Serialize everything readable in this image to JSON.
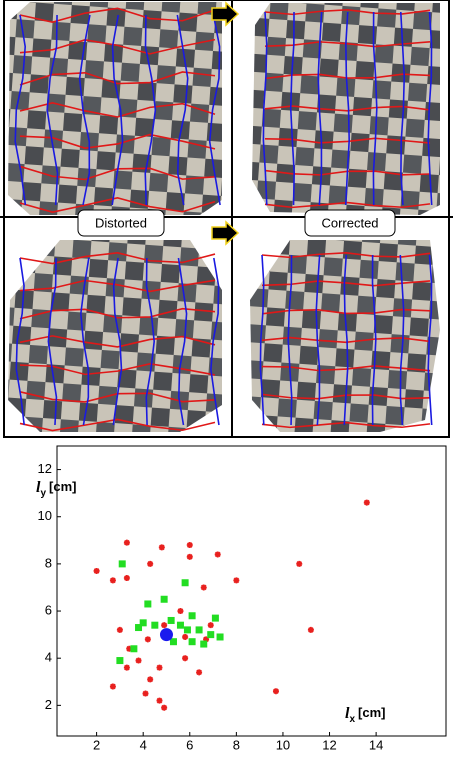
{
  "image_labels": [
    "Distorted",
    "Corrected"
  ],
  "chart_data": {
    "type": "scatter",
    "xlabel": {
      "symbol": "l",
      "subscript": "x",
      "unit": "[cm]"
    },
    "ylabel": {
      "symbol": "l",
      "subscript": "y",
      "unit": "[cm]"
    },
    "xlim": [
      0.3,
      17
    ],
    "ylim": [
      0.7,
      13
    ],
    "xticks": [
      2,
      4,
      6,
      8,
      10,
      12,
      14
    ],
    "yticks": [
      2,
      4,
      6,
      8,
      10,
      12
    ],
    "series": [
      {
        "color": "#e8201e",
        "marker": "star",
        "x": [
          3.3,
          4.8,
          6.0,
          2.0,
          2.7,
          4.3,
          6.0,
          7.2,
          8.0,
          10.7,
          3.3,
          6.6,
          3.0,
          5.6,
          4.9,
          6.9,
          5.8,
          6.7,
          3.4,
          4.2,
          11.2,
          3.8,
          3.3,
          2.7,
          4.7,
          4.3,
          4.1,
          4.7,
          4.9,
          9.7,
          6.4,
          5.8,
          13.6
        ],
        "values": [
          8.9,
          8.7,
          8.8,
          7.7,
          7.3,
          8.0,
          8.3,
          8.4,
          7.3,
          8.0,
          7.4,
          7.0,
          5.2,
          6.0,
          5.4,
          5.4,
          4.9,
          4.8,
          4.4,
          4.8,
          5.2,
          3.9,
          3.6,
          2.8,
          3.6,
          3.1,
          2.5,
          2.2,
          1.9,
          2.6,
          3.4,
          4.0,
          10.6
        ]
      },
      {
        "color": "#22dd22",
        "marker": "square",
        "x": [
          3.1,
          5.8,
          4.2,
          4.9,
          4.0,
          4.5,
          5.2,
          5.6,
          6.1,
          6.4,
          7.1,
          6.9,
          7.3,
          3.6,
          3.0,
          6.6,
          6.1,
          5.3,
          5.9,
          3.8
        ],
        "values": [
          8.0,
          7.2,
          6.3,
          6.5,
          5.5,
          5.4,
          5.6,
          5.4,
          5.8,
          5.2,
          5.7,
          5.0,
          4.9,
          4.4,
          3.9,
          4.6,
          4.7,
          4.7,
          5.2,
          5.3
        ]
      },
      {
        "color": "#1a1aee",
        "marker": "circle",
        "x": [
          5.0
        ],
        "values": [
          5.0
        ]
      }
    ]
  }
}
